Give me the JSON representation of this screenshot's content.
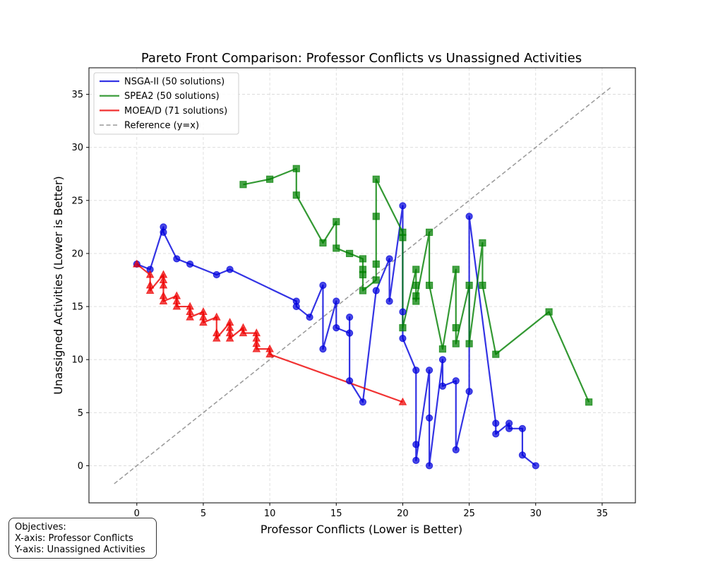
{
  "chart_data": {
    "type": "scatter",
    "title": "Pareto Front Comparison: Professor Conflicts vs Unassigned Activities",
    "xlabel": "Professor Conflicts (Lower is Better)",
    "ylabel": "Unassigned Activities (Lower is Better)",
    "xlim": [
      -3.6,
      37.5
    ],
    "ylim": [
      -3.5,
      37.5
    ],
    "xticks": [
      0,
      5,
      10,
      15,
      20,
      25,
      30,
      35
    ],
    "yticks": [
      0,
      5,
      10,
      15,
      20,
      25,
      30,
      35
    ],
    "grid": true,
    "legend_position": "top-left",
    "series": [
      {
        "name": "NSGA-II (50 solutions)",
        "color": "#0000dd",
        "marker": "circle",
        "points": [
          [
            0,
            19
          ],
          [
            1,
            18.5
          ],
          [
            2,
            22.5
          ],
          [
            2,
            22
          ],
          [
            3,
            19.5
          ],
          [
            4,
            19
          ],
          [
            6,
            18
          ],
          [
            7,
            18.5
          ],
          [
            12,
            15.5
          ],
          [
            12,
            15
          ],
          [
            13,
            14
          ],
          [
            14,
            17
          ],
          [
            14,
            11
          ],
          [
            15,
            15.5
          ],
          [
            15,
            13
          ],
          [
            16,
            12.5
          ],
          [
            16,
            14
          ],
          [
            16,
            8
          ],
          [
            17,
            6
          ],
          [
            18,
            16.5
          ],
          [
            19,
            19.5
          ],
          [
            19,
            15.5
          ],
          [
            20,
            24.5
          ],
          [
            20,
            14.5
          ],
          [
            20,
            12
          ],
          [
            21,
            9
          ],
          [
            21,
            2
          ],
          [
            21,
            0.5
          ],
          [
            22,
            9
          ],
          [
            22,
            4.5
          ],
          [
            22,
            0
          ],
          [
            23,
            10
          ],
          [
            23,
            7.5
          ],
          [
            24,
            8
          ],
          [
            24,
            1.5
          ],
          [
            25,
            7
          ],
          [
            25,
            23.5
          ],
          [
            27,
            4
          ],
          [
            27,
            3
          ],
          [
            28,
            4
          ],
          [
            28,
            3.5
          ],
          [
            29,
            3.5
          ],
          [
            29,
            1
          ],
          [
            30,
            0
          ]
        ]
      },
      {
        "name": "SPEA2 (50 solutions)",
        "color": "#008000",
        "marker": "square",
        "points": [
          [
            8,
            26.5
          ],
          [
            10,
            27
          ],
          [
            12,
            28
          ],
          [
            12,
            25.5
          ],
          [
            14,
            21
          ],
          [
            15,
            23
          ],
          [
            15,
            20.5
          ],
          [
            16,
            20
          ],
          [
            17,
            19.5
          ],
          [
            17,
            18.5
          ],
          [
            17,
            18
          ],
          [
            17,
            16.5
          ],
          [
            18,
            17.5
          ],
          [
            18,
            19
          ],
          [
            18,
            23.5
          ],
          [
            18,
            27
          ],
          [
            20,
            22
          ],
          [
            20,
            21.5
          ],
          [
            20,
            13
          ],
          [
            21,
            18.5
          ],
          [
            21,
            17
          ],
          [
            21,
            16
          ],
          [
            21,
            15.5
          ],
          [
            22,
            22
          ],
          [
            22,
            17
          ],
          [
            23,
            11
          ],
          [
            24,
            18.5
          ],
          [
            24,
            13
          ],
          [
            24,
            11.5
          ],
          [
            25,
            17
          ],
          [
            25,
            11.5
          ],
          [
            26,
            21
          ],
          [
            26,
            17
          ],
          [
            27,
            10.5
          ],
          [
            31,
            14.5
          ],
          [
            34,
            6
          ]
        ]
      },
      {
        "name": "MOEA/D (71 solutions)",
        "color": "#ee0000",
        "marker": "triangle",
        "points": [
          [
            0,
            19
          ],
          [
            1,
            18
          ],
          [
            1,
            17
          ],
          [
            1,
            16.5
          ],
          [
            2,
            18
          ],
          [
            2,
            17.5
          ],
          [
            2,
            17
          ],
          [
            2,
            16
          ],
          [
            2,
            15.5
          ],
          [
            3,
            16
          ],
          [
            3,
            15.5
          ],
          [
            3,
            15
          ],
          [
            4,
            15
          ],
          [
            4,
            14.5
          ],
          [
            4,
            14
          ],
          [
            5,
            14.5
          ],
          [
            5,
            14
          ],
          [
            5,
            13.5
          ],
          [
            6,
            14
          ],
          [
            6,
            12.5
          ],
          [
            6,
            12
          ],
          [
            7,
            13.5
          ],
          [
            7,
            13
          ],
          [
            7,
            12.5
          ],
          [
            7,
            12
          ],
          [
            8,
            13
          ],
          [
            8,
            12.5
          ],
          [
            9,
            12.5
          ],
          [
            9,
            12
          ],
          [
            9,
            11.5
          ],
          [
            9,
            11
          ],
          [
            10,
            11
          ],
          [
            10,
            10.5
          ],
          [
            20,
            6
          ]
        ]
      },
      {
        "name": "Reference (y=x)",
        "color": "#999999",
        "marker": "none",
        "dashed": true,
        "points": [
          [
            -1.7,
            -1.7
          ],
          [
            35.7,
            35.7
          ]
        ]
      }
    ],
    "annotation": {
      "line1": "Objectives:",
      "line2": "X-axis: Professor Conflicts",
      "line3": "Y-axis: Unassigned Activities"
    }
  }
}
